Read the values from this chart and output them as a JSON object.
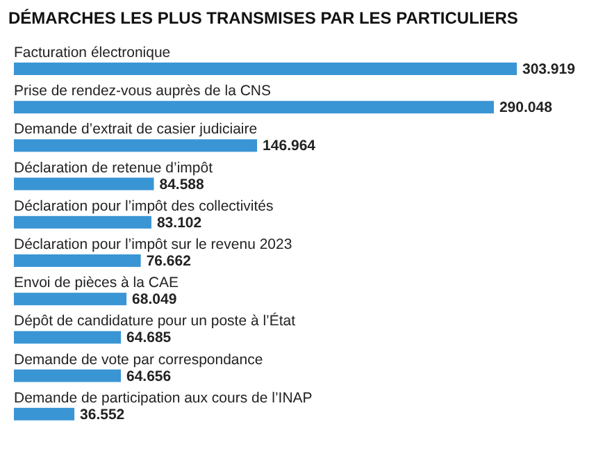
{
  "chart_data": {
    "type": "bar",
    "orientation": "horizontal",
    "title": "DÉMARCHES LES PLUS TRANSMISES PAR LES PARTICULIERS",
    "categories": [
      "Facturation électronique",
      "Prise de rendez-vous auprès de la CNS",
      "Demande d’extrait de casier judiciaire",
      "Déclaration de retenue d’impôt",
      "Déclaration pour l’impôt des collectivités",
      "Déclaration pour l’impôt sur le revenu 2023",
      "Envoi de pièces à la CAE",
      "Dépôt de candidature pour un poste à l’État",
      "Demande de vote par correspondance",
      "Demande de participation aux cours de l’INAP"
    ],
    "values": [
      303919,
      290048,
      146964,
      84588,
      83102,
      76662,
      68049,
      64685,
      64656,
      36552
    ],
    "value_labels": [
      "303.919",
      "290.048",
      "146.964",
      "84.588",
      "83.102",
      "76.662",
      "68.049",
      "64.685",
      "64.656",
      "36.552"
    ],
    "color": "#3a95d4"
  }
}
